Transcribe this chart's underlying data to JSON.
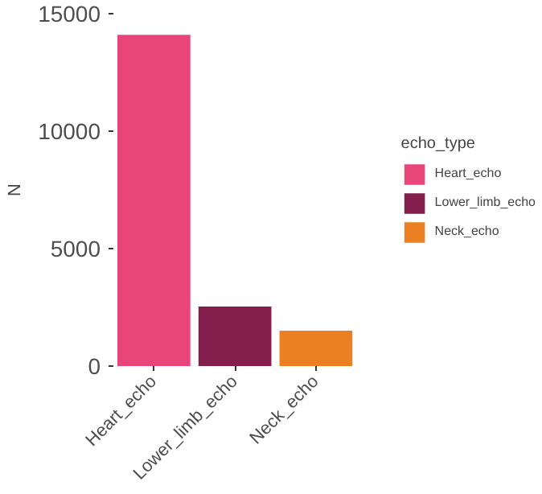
{
  "chart_data": {
    "type": "bar",
    "ylabel": "N",
    "legend_title": "echo_type",
    "categories": [
      "Heart_echo",
      "Lower_limb_echo",
      "Neck_echo"
    ],
    "series": [
      {
        "name": "Heart_echo",
        "color": "#e8467a",
        "values": [
          14100,
          null,
          null
        ]
      },
      {
        "name": "Lower_limb_echo",
        "color": "#841e4c",
        "values": [
          null,
          2530,
          null
        ]
      },
      {
        "name": "Neck_echo",
        "color": "#ea8022",
        "values": [
          null,
          null,
          1510
        ]
      }
    ],
    "ylim": [
      0,
      15000
    ],
    "yticks": [
      0,
      5000,
      10000,
      15000
    ],
    "grid": false,
    "legend": "right"
  }
}
